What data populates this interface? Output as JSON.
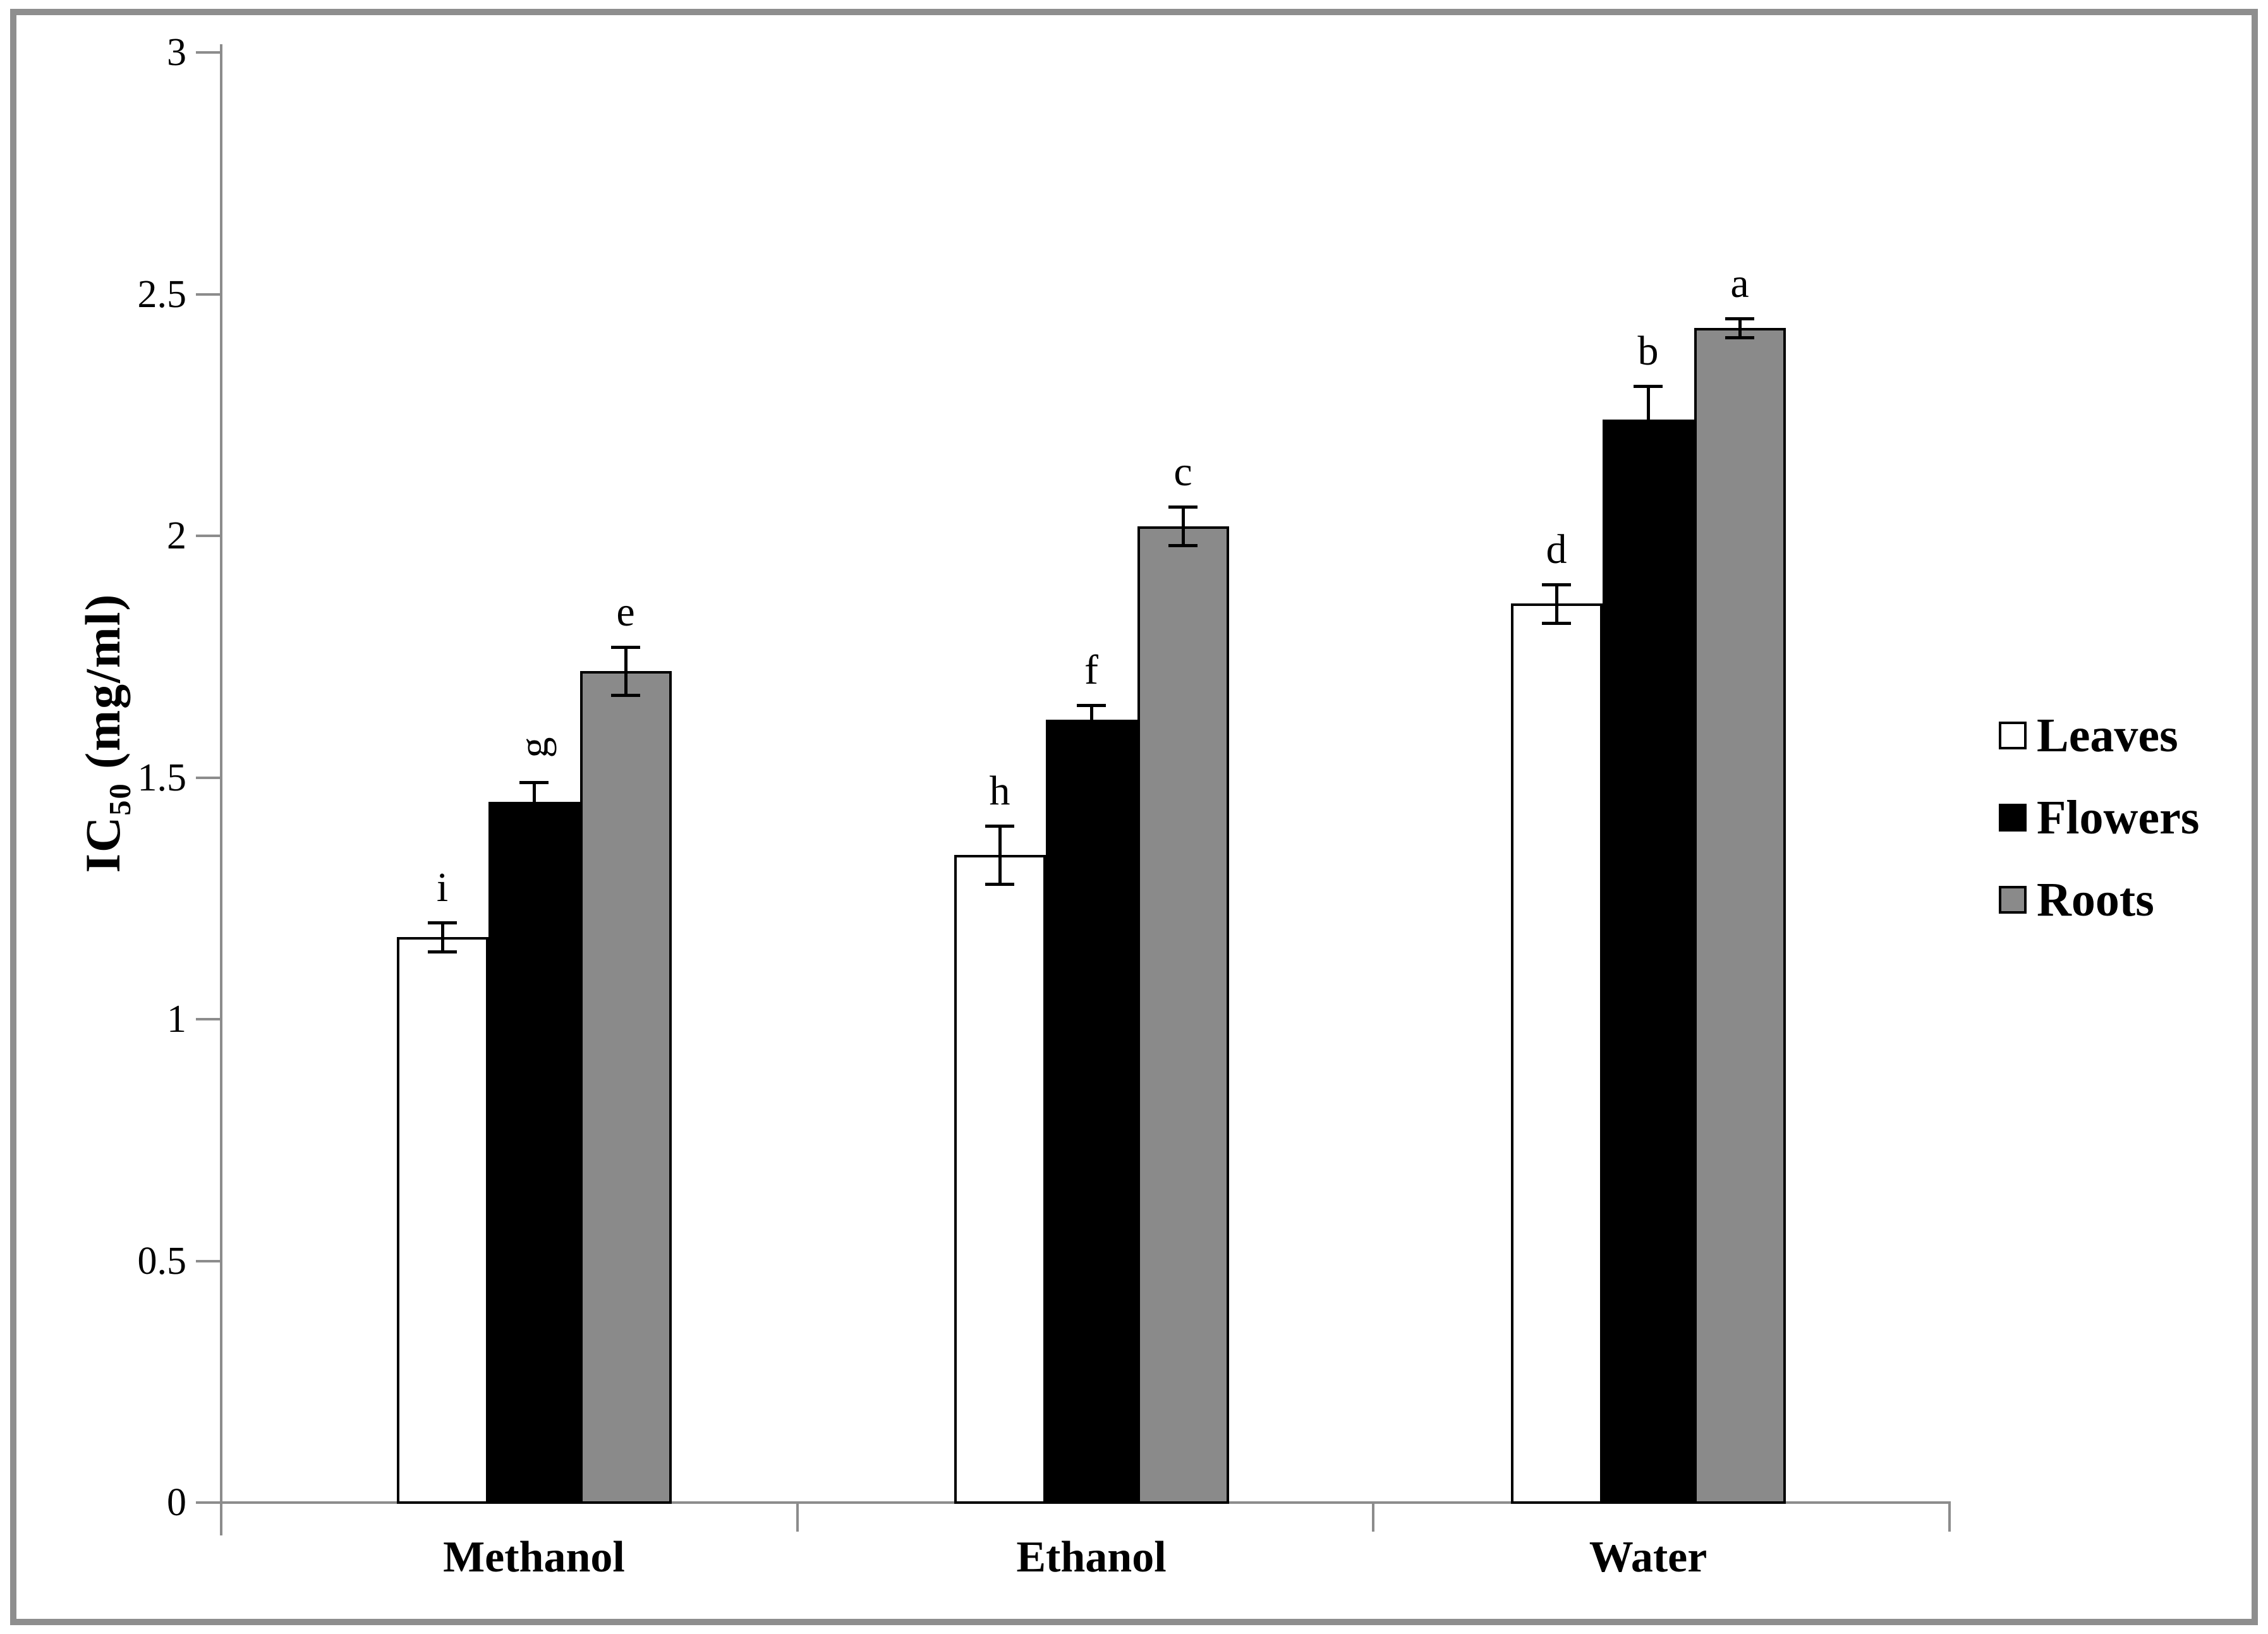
{
  "figure": {
    "background": "#ffffff",
    "border_color": "#8e8e8e",
    "axis_color": "#8c8c8c"
  },
  "chart_data": {
    "type": "bar",
    "title": "",
    "xlabel": "",
    "ylabel": "IC50 (mg/ml)",
    "ylabel_parts": {
      "main": "IC",
      "sub": "50",
      "units": " (mg/ml)"
    },
    "categories": [
      "Methanol",
      "Ethanol",
      "Water"
    ],
    "series": [
      {
        "name": "Leaves",
        "fill": "#ffffff",
        "stroke": "#000000",
        "values": [
          1.17,
          1.34,
          1.86
        ],
        "errors": [
          0.03,
          0.06,
          0.04
        ],
        "letters": [
          "i",
          "h",
          "d"
        ]
      },
      {
        "name": "Flowers",
        "fill": "#000000",
        "stroke": "#000000",
        "values": [
          1.45,
          1.62,
          2.24
        ],
        "errors": [
          0.04,
          0.03,
          0.07
        ],
        "letters": [
          "g",
          "f",
          "b"
        ]
      },
      {
        "name": "Roots",
        "fill": "#8a8a8a",
        "stroke": "#000000",
        "values": [
          1.72,
          2.02,
          2.43
        ],
        "errors": [
          0.05,
          0.04,
          0.02
        ],
        "letters": [
          "e",
          "c",
          "a"
        ]
      }
    ],
    "rotated_letters": [
      "g"
    ],
    "error_bars": true,
    "ylim": [
      0,
      3
    ],
    "yticks": [
      "0",
      "0.5",
      "1",
      "1.5",
      "2",
      "2.5",
      "3"
    ],
    "grid": false,
    "legend_position": "right",
    "legend_entries": [
      "Leaves",
      "Flowers",
      "Roots"
    ]
  }
}
